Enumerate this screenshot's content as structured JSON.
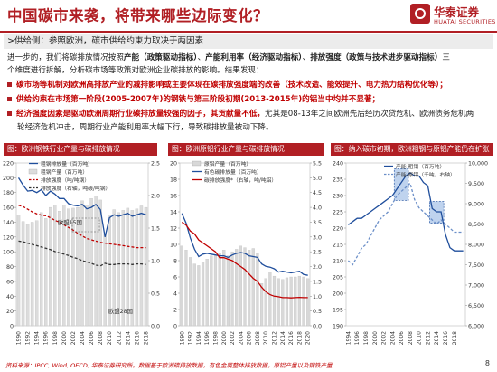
{
  "header": {
    "title": "中国碳市来袭，将带来哪些边际变化？",
    "logo_cn": "华泰证券",
    "logo_en": "HUATAI SECURITIES"
  },
  "subtitle": ">供给侧：参照欧洲，碳市供给约束力取决于两因素",
  "paragraph": {
    "line1_a": "进一步的，我们将碳排放情况按照",
    "line1_b": "产能（政策驱动指标）",
    "line1_c": "、",
    "line1_d": "产能利用率（经济驱动指标）",
    "line1_e": "、",
    "line1_f": "排放强度（政策与技术进步驱动指标）",
    "line1_g": "三",
    "line2": "个维度进行拆解，分析碳市场等政策对欧洲企业碳排放的影响。结果发现："
  },
  "bullets": [
    {
      "text": "碳市场等机制对欧洲高排放产业的减排影响或主要体现在碳排放强度端的改善（技术改造、能效提升、电力热力结构优化等）；",
      "red": true
    },
    {
      "text_a": "供给约束在市场第一阶段(2005-2007年)的钢铁与第三阶段初期(2013-2015年)的铝当中均并不显著；",
      "red": true
    },
    {
      "text_a": "经济强度因素是驱动欧洲周期行业碳排放量较强的因子，其贡献量不低，",
      "text_b": "尤其是08-13年之间欧洲先后经历次贷危机、欧洲债务危机两",
      "text_c": "轮经济危机冲击，周期行业产能利用率大幅下行，导致碳排放量被动下降。"
    }
  ],
  "panels": [
    {
      "head": "图：欧洲钢铁行业产量与碳排放情况"
    },
    {
      "head": "图：欧洲原铝行业产量与碳排放情况"
    },
    {
      "head": "图：纳入碳市初期，欧洲粗钢与原铝产能仍在扩张"
    }
  ],
  "chart_data": [
    {
      "type": "bar",
      "title": "图：欧洲钢铁行业产量与碳排放情况",
      "legend": [
        "粗钢排放量（百万吨）",
        "粗钢产量（百万吨）",
        "排放强度（吨/吨钢）",
        "排放强度（右轴，吨碳/吨钢）"
      ],
      "annotations": [
        "欧盟15国",
        "欧盟28国"
      ],
      "categories": [
        "1990",
        "1991",
        "1992",
        "1993",
        "1994",
        "1995",
        "1996",
        "1997",
        "1998",
        "1999",
        "2000",
        "2001",
        "2002",
        "2003",
        "2004",
        "2005",
        "2006",
        "2007",
        "2008",
        "2009",
        "2010",
        "2011",
        "2012",
        "2013",
        "2014",
        "2015",
        "2016",
        "2017",
        "2018"
      ],
      "x_ticks": [
        "1990",
        "1992",
        "1994",
        "1996",
        "1998",
        "2000",
        "2002",
        "2004",
        "2006",
        "2008",
        "2010",
        "2012",
        "2014",
        "2016",
        "2018"
      ],
      "y_left_ticks": [
        "0",
        "20",
        "40",
        "60",
        "80",
        "100",
        "120",
        "140",
        "160",
        "180",
        "200",
        "220"
      ],
      "y_right_ticks": [
        "0.0",
        "0.5",
        "1.0",
        "1.5",
        "2.0",
        "2.5"
      ],
      "ylim_left": [
        0,
        220
      ],
      "ylim_right": [
        0,
        2.5
      ],
      "series": [
        {
          "name": "粗钢产量（百万吨）",
          "type": "bar",
          "axis": "left",
          "color": "#dcdcdc",
          "values": [
            150,
            141,
            137,
            140,
            142,
            153,
            145,
            160,
            163,
            155,
            163,
            158,
            159,
            160,
            169,
            163,
            172,
            175,
            170,
            124,
            150,
            157,
            153,
            156,
            159,
            156,
            158,
            162,
            160
          ]
        },
        {
          "name": "粗钢排放量（百万吨）",
          "type": "line",
          "axis": "left",
          "color": "#1f4e9c",
          "values": [
            200,
            190,
            182,
            183,
            180,
            184,
            176,
            182,
            178,
            172,
            172,
            165,
            163,
            162,
            164,
            158,
            160,
            164,
            157,
            120,
            146,
            150,
            148,
            150,
            152,
            148,
            150,
            152,
            150
          ]
        },
        {
          "name": "排放强度（吨/吨钢）",
          "type": "line",
          "axis": "right",
          "color": "#c00000",
          "dashed": true,
          "values": [
            1.85,
            1.83,
            1.79,
            1.75,
            1.72,
            1.7,
            1.69,
            1.66,
            1.62,
            1.59,
            1.55,
            1.51,
            1.47,
            1.42,
            1.38,
            1.34,
            1.32,
            1.3,
            1.28,
            1.27,
            1.26,
            1.25,
            1.24,
            1.23,
            1.22,
            1.21,
            1.2,
            1.2,
            1.2
          ]
        },
        {
          "name": "排放强度（右轴，吨碳/吨钢）",
          "type": "line",
          "axis": "right",
          "color": "#333333",
          "dashed": true,
          "values": [
            1.3,
            1.29,
            1.27,
            1.25,
            1.23,
            1.21,
            1.19,
            1.17,
            1.14,
            1.12,
            1.1,
            1.08,
            1.05,
            1.03,
            1.0,
            0.98,
            0.96,
            0.93,
            0.92,
            0.96,
            0.94,
            0.94,
            0.95,
            0.95,
            0.95,
            0.94,
            0.95,
            0.95,
            0.94
          ]
        }
      ]
    },
    {
      "type": "bar",
      "title": "图：欧洲原铝行业产量与碳排放情况",
      "legend": [
        "有色碳排放量（百万吨）",
        "原铝产量（百万吨）",
        "碳排放强度*（右轴，吨/吨铝）"
      ],
      "categories": [
        "1990",
        "1991",
        "1992",
        "1993",
        "1994",
        "1995",
        "1996",
        "1997",
        "1998",
        "1999",
        "2000",
        "2001",
        "2002",
        "2003",
        "2004",
        "2005",
        "2006",
        "2007",
        "2008",
        "2009",
        "2010",
        "2011",
        "2012",
        "2013",
        "2014",
        "2015",
        "2016",
        "2017",
        "2018",
        "2019",
        "2020"
      ],
      "x_ticks": [
        "1990",
        "1992",
        "1994",
        "1996",
        "1998",
        "2000",
        "2002",
        "2004",
        "2006",
        "2008",
        "2010",
        "2012",
        "2014",
        "2016",
        "2018",
        "2020"
      ],
      "y_left_ticks": [
        "0",
        "2",
        "4",
        "6",
        "8",
        "10",
        "12",
        "14",
        "16",
        "18",
        "20"
      ],
      "y_right_ticks": [
        "0.0",
        "0.5",
        "1.0",
        "1.5",
        "2.0",
        "2.5",
        "3.0",
        "3.5",
        "4.0",
        "4.5",
        "5.0",
        "5.5"
      ],
      "ylim_left": [
        0,
        20
      ],
      "ylim_right": [
        0,
        5.5
      ],
      "series": [
        {
          "name": "原铝产量（百万吨）",
          "type": "bar",
          "axis": "left",
          "color": "#d8d8d8",
          "values": [
            9.8,
            9.3,
            8.4,
            7.6,
            7.4,
            7.8,
            8.2,
            8.6,
            8.7,
            8.9,
            9.3,
            8.6,
            9.1,
            9.4,
            9.8,
            9.6,
            9.3,
            9.5,
            8.9,
            5.2,
            5.8,
            6.6,
            6.1,
            5.8,
            5.7,
            5.9,
            6.0,
            6.0,
            6.1,
            6.0,
            5.8
          ]
        },
        {
          "name": "有色碳排放量（百万吨）",
          "type": "line",
          "axis": "left",
          "color": "#1f4e9c",
          "values": [
            13.8,
            12.6,
            10.8,
            9.4,
            8.5,
            8.8,
            8.9,
            8.8,
            8.7,
            8.6,
            8.6,
            8.4,
            8.7,
            8.9,
            9.0,
            8.9,
            8.6,
            8.5,
            8.4,
            7.6,
            7.3,
            7.2,
            7.0,
            6.6,
            6.7,
            6.6,
            6.5,
            6.6,
            6.7,
            6.3,
            6.2
          ]
        },
        {
          "name": "碳排放强度*（右轴，吨/吨铝）",
          "type": "line",
          "axis": "right",
          "color": "#c00000",
          "values": [
            3.5,
            3.4,
            3.2,
            3.1,
            2.9,
            2.8,
            2.7,
            2.6,
            2.5,
            2.3,
            2.3,
            2.25,
            2.2,
            2.1,
            2.0,
            1.9,
            1.75,
            1.6,
            1.5,
            1.3,
            1.15,
            1.05,
            1.0,
            0.98,
            0.95,
            0.95,
            0.94,
            0.95,
            0.96,
            0.95,
            0.95
          ]
        }
      ]
    },
    {
      "type": "line",
      "title": "图：纳入碳市初期，欧洲粗钢与原铝产能仍在扩张",
      "legend": [
        "产能-粗钢（百万吨）",
        "产能-原铝（千吨，右轴）"
      ],
      "x": [
        "1994",
        "1995",
        "1996",
        "1997",
        "1998",
        "1999",
        "2000",
        "2001",
        "2002",
        "2003",
        "2004",
        "2005",
        "2006",
        "2007",
        "2008",
        "2009",
        "2010",
        "2011",
        "2012",
        "2013",
        "2014",
        "2015",
        "2016",
        "2017",
        "2018",
        "2019",
        "2020"
      ],
      "x_ticks": [
        "1994",
        "1996",
        "1998",
        "2000",
        "2002",
        "2004",
        "2006",
        "2008",
        "2010",
        "2012",
        "2014",
        "2016",
        "2018"
      ],
      "y_left_ticks": [
        "190",
        "195",
        "200",
        "205",
        "210",
        "215",
        "220",
        "225",
        "230",
        "235",
        "240"
      ],
      "y_right_ticks": [
        "6,000",
        "6,500",
        "7,000",
        "7,500",
        "8,000",
        "8,500",
        "9,000",
        "9,500",
        "10,000"
      ],
      "ylim_left": [
        190,
        240
      ],
      "ylim_right": [
        6000,
        10000
      ],
      "highlight_ranges": [
        [
          "2005",
          "2007"
        ],
        [
          "2013",
          "2015"
        ]
      ],
      "series": [
        {
          "name": "产能-粗钢（百万吨）",
          "type": "line",
          "axis": "left",
          "color": "#1f4e9c",
          "values": [
            221,
            222,
            223,
            223,
            224,
            225,
            226,
            227,
            228,
            229,
            230,
            232,
            234,
            236,
            237,
            236,
            236,
            234,
            233,
            226,
            225,
            225,
            218,
            214,
            213,
            213,
            213
          ]
        },
        {
          "name": "产能-原铝（千吨，右轴）",
          "type": "line",
          "axis": "right",
          "color": "#6a8ec8",
          "dashed": true,
          "values": [
            7600,
            7500,
            7700,
            7900,
            8000,
            8200,
            8400,
            8600,
            8700,
            8800,
            9000,
            9200,
            9300,
            9400,
            9500,
            9100,
            8900,
            8800,
            8700,
            8600,
            8500,
            8600,
            8500,
            8400,
            8300,
            8300,
            8300
          ]
        }
      ]
    }
  ],
  "source": "资料来源：IPCC, Wind, OECD, 华泰证券研究所。数据基于欧洲碳排放数据，有色金属整体排放数据，原铝产量以及钢铁产量",
  "page_number": "8"
}
